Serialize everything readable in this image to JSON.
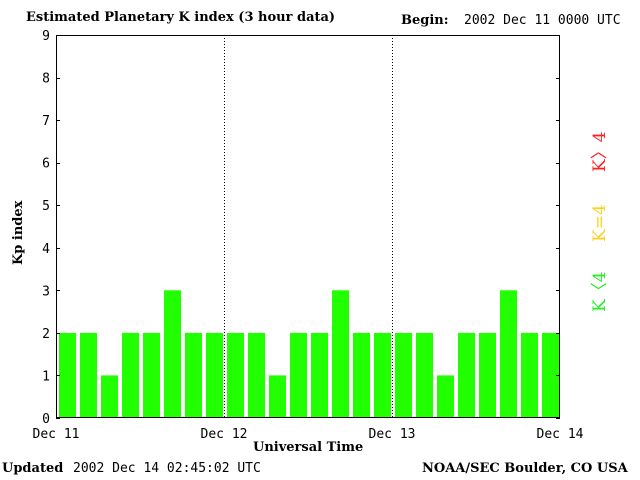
{
  "header": {
    "title": "Estimated Planetary K index (3 hour data)",
    "begin_label": "Begin:",
    "begin_value": "2002 Dec 11 0000 UTC"
  },
  "footer": {
    "updated_label": "Updated",
    "updated_value": "2002 Dec 14 02:45:02 UTC",
    "credit": "NOAA/SEC Boulder, CO USA"
  },
  "legend": {
    "high": "K〉4",
    "equal": "K=4",
    "low": "K〈4"
  },
  "chart_data": {
    "type": "bar",
    "title": "Estimated Planetary K index (3 hour data)",
    "xlabel": "Universal Time",
    "ylabel": "Kp index",
    "ylim": [
      0,
      9
    ],
    "yticks": [
      0,
      1,
      2,
      3,
      4,
      5,
      6,
      7,
      8,
      9
    ],
    "xticks": [
      "Dec 11",
      "Dec 12",
      "Dec 13",
      "Dec 14"
    ],
    "day_dividers": true,
    "values": [
      2,
      2,
      1,
      2,
      2,
      3,
      2,
      2,
      2,
      2,
      1,
      2,
      2,
      3,
      2,
      2,
      2,
      2,
      1,
      2,
      2,
      3,
      2,
      2
    ],
    "colors": {
      "low": "#22ff00",
      "equal": "#ffd020",
      "high": "#ff2020"
    }
  }
}
